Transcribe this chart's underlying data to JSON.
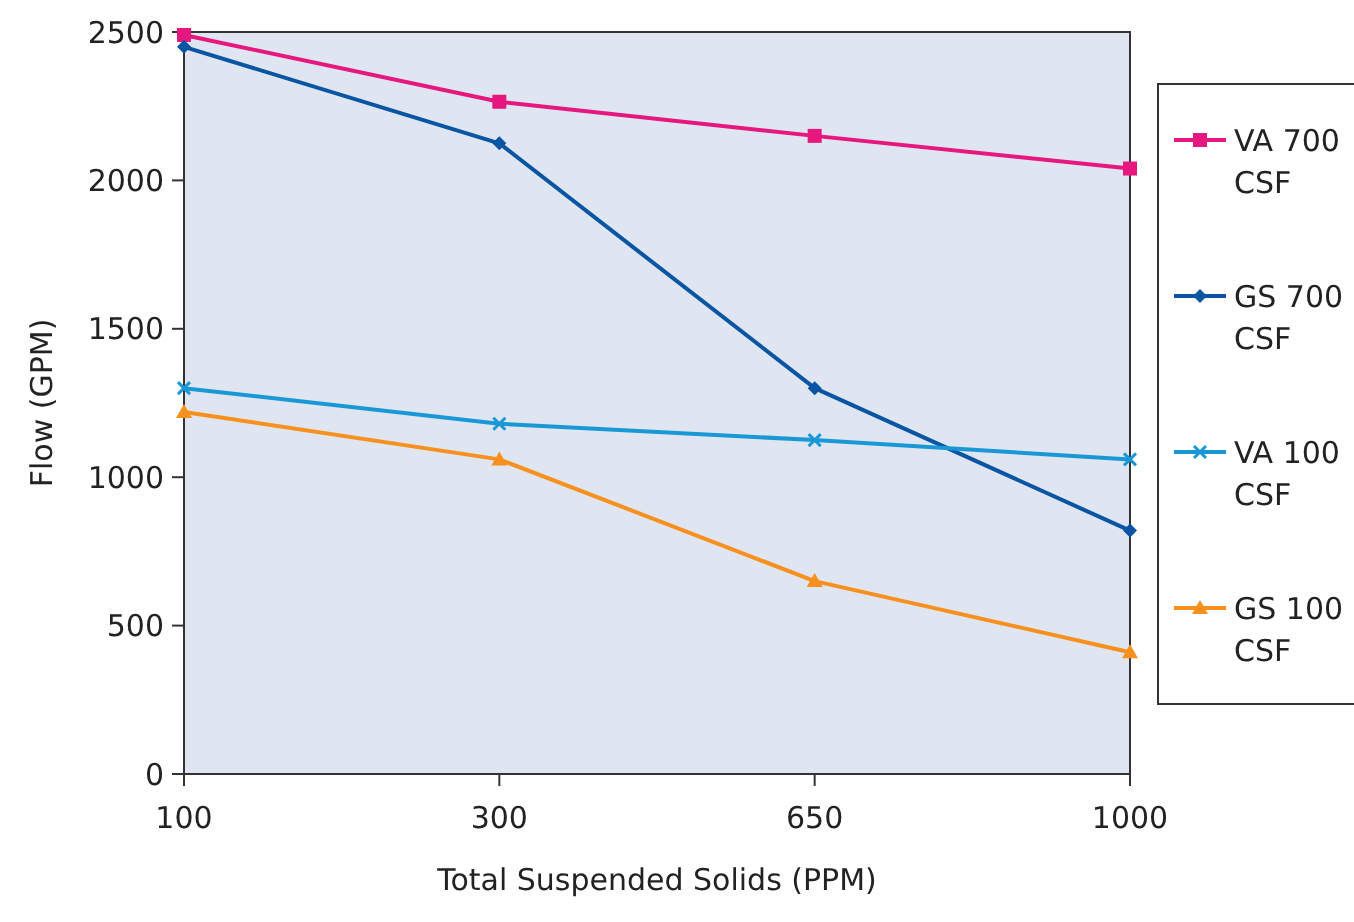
{
  "chart_data": {
    "type": "line",
    "xlabel": "Total Suspended Solids (PPM)",
    "ylabel": "Flow (GPM)",
    "categories": [
      "100",
      "300",
      "650",
      "1000"
    ],
    "ylim": [
      0,
      2500
    ],
    "yticks": [
      0,
      500,
      1000,
      1500,
      2000,
      2500
    ],
    "grid": false,
    "legend": "right",
    "series": [
      {
        "name": "VA 700 CSF",
        "color": "#e6177f",
        "marker": "square",
        "values": [
          2490,
          2265,
          2150,
          2040
        ]
      },
      {
        "name": "GS 700 CSF",
        "color": "#0a55a3",
        "marker": "diamond",
        "values": [
          2450,
          2125,
          1300,
          820
        ]
      },
      {
        "name": "VA 100 CSF",
        "color": "#1a97d5",
        "marker": "cross",
        "values": [
          1300,
          1180,
          1125,
          1060
        ]
      },
      {
        "name": "GS 100 CSF",
        "color": "#f7901e",
        "marker": "triangle",
        "values": [
          1220,
          1060,
          650,
          410
        ]
      }
    ]
  }
}
